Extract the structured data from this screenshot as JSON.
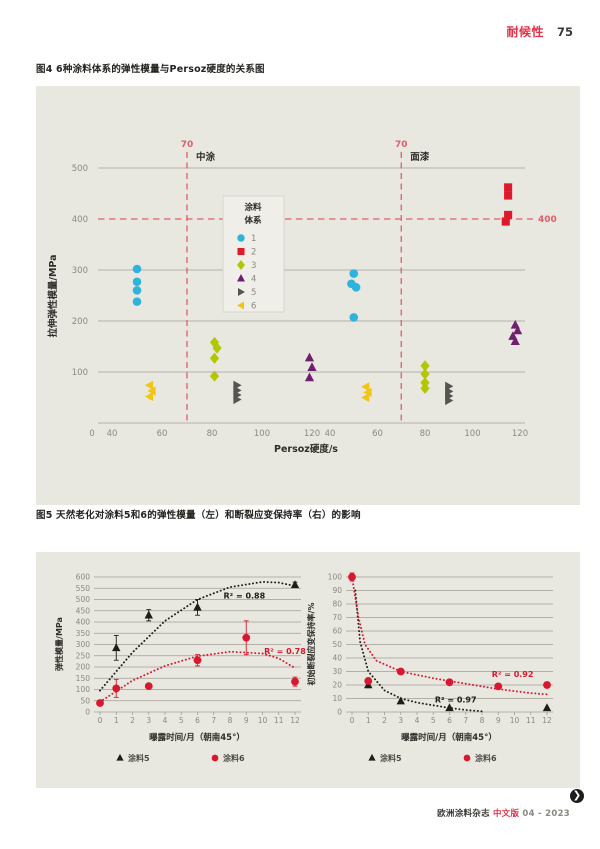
{
  "header": {
    "section_label": "耐候性",
    "page_number": "75"
  },
  "figure4": {
    "caption": "图4 6种涂料体系的弹性模量与Persoz硬度的关系图"
  },
  "figure5": {
    "caption": "图5 天然老化对涂料5和6的弹性模量（左）和断裂应变保持率（右）的影响"
  },
  "footer": {
    "journal": "欧洲涂料杂志",
    "edition": "中文版",
    "issue": "04 - 2023",
    "next_icon": "circle-arrow-right-icon",
    "next_glyph": "❯"
  },
  "colors": {
    "accent_red": "#e4314a",
    "ref_line_red": "#e05f68",
    "panel_bg": "#e8e7e0",
    "grid": "#a29f94",
    "tick_text": "#8b897f",
    "dark_text": "#2e2d29",
    "legend_bg": "#efeee8",
    "legend_border": "#d9d7cd",
    "series1_cyan": "#2eb3dc",
    "series2_red": "#dc1a2c",
    "series3_green": "#b2c704",
    "series4_purple": "#701f6f",
    "series5_gray": "#565551",
    "series6_yellow": "#f2c513",
    "coating5_black": "#1d1d1b",
    "coating6_red": "#d8182f"
  },
  "chart_data": [
    {
      "id": "fig4",
      "type": "scatter",
      "title": "图4 6种涂料体系的弹性模量与Persoz硬度的关系图",
      "xlabel": "Persoz硬度/s",
      "ylabel": "拉伸弹性模量/MPa",
      "ylim": [
        0,
        500
      ],
      "yticks": [
        0,
        100,
        200,
        300,
        400,
        500
      ],
      "ref_y": {
        "value": 400,
        "label": "400"
      },
      "panels": [
        {
          "name": "中涂",
          "xticks": [
            0,
            40,
            60,
            80,
            100,
            120
          ],
          "ref_x": {
            "value": 70,
            "label": "70"
          }
        },
        {
          "name": "面漆",
          "xticks": [
            40,
            60,
            80,
            100,
            120
          ],
          "ref_x": {
            "value": 70,
            "label": "70"
          }
        }
      ],
      "legend": {
        "title_lines": [
          "涂料",
          "体系"
        ]
      },
      "grid": true,
      "series": [
        {
          "name": "1",
          "marker": "circle",
          "color": "#2eb3dc",
          "points": [
            [
              0,
              50,
              302
            ],
            [
              0,
              50,
              277
            ],
            [
              0,
              50,
              260
            ],
            [
              0,
              50,
              238
            ],
            [
              1,
              50,
              293
            ],
            [
              1,
              49,
              273
            ],
            [
              1,
              51,
              266
            ],
            [
              1,
              50,
              207
            ]
          ]
        },
        {
          "name": "2",
          "marker": "square",
          "color": "#dc1a2c",
          "points": [
            [
              1,
              115,
              462
            ],
            [
              1,
              115,
              446
            ],
            [
              1,
              115,
              408
            ],
            [
              1,
              114,
              395
            ]
          ]
        },
        {
          "name": "3",
          "marker": "diamond",
          "color": "#b2c704",
          "points": [
            [
              0,
              81,
              158
            ],
            [
              0,
              82,
              147
            ],
            [
              0,
              81,
              127
            ],
            [
              0,
              81,
              92
            ],
            [
              1,
              80,
              112
            ],
            [
              1,
              80,
              96
            ],
            [
              1,
              80,
              79
            ],
            [
              1,
              80,
              68
            ]
          ]
        },
        {
          "name": "4",
          "marker": "triangle-up",
          "color": "#701f6f",
          "points": [
            [
              0,
              119,
              128
            ],
            [
              0,
              120,
              109
            ],
            [
              0,
              119,
              89
            ],
            [
              1,
              118,
              192
            ],
            [
              1,
              119,
              181
            ],
            [
              1,
              117,
              170
            ],
            [
              1,
              118,
              160
            ]
          ]
        },
        {
          "name": "5",
          "marker": "triangle-right",
          "color": "#565551",
          "points": [
            [
              0,
              90,
              74
            ],
            [
              0,
              90,
              64
            ],
            [
              0,
              90,
              55
            ],
            [
              0,
              90,
              46
            ],
            [
              1,
              90,
              72
            ],
            [
              1,
              90,
              62
            ],
            [
              1,
              90,
              53
            ],
            [
              1,
              90,
              44
            ]
          ]
        },
        {
          "name": "6",
          "marker": "triangle-left",
          "color": "#f2c513",
          "points": [
            [
              0,
              55,
              74
            ],
            [
              0,
              56,
              63
            ],
            [
              0,
              55,
              52
            ],
            [
              1,
              55,
              71
            ],
            [
              1,
              56,
              60
            ],
            [
              1,
              55,
              50
            ]
          ]
        }
      ]
    },
    {
      "id": "fig5-left",
      "type": "scatter",
      "xlabel": "曝露时间/月（朝南45°）",
      "ylabel": "弹性模量/MPa",
      "xlim": [
        0,
        12
      ],
      "xticks": [
        0,
        1,
        2,
        3,
        4,
        5,
        6,
        7,
        8,
        9,
        10,
        11,
        12
      ],
      "ylim": [
        0,
        600
      ],
      "yticks": [
        0,
        50,
        100,
        150,
        200,
        250,
        300,
        350,
        400,
        450,
        500,
        550,
        600
      ],
      "grid": true,
      "series": [
        {
          "name": "涂料5",
          "marker": "triangle-up",
          "color": "#1d1d1b",
          "points": [
            [
              1,
              285,
              55
            ],
            [
              3,
              430,
              25
            ],
            [
              6,
              465,
              35
            ],
            [
              12,
              565,
              12
            ]
          ],
          "r2_label": "R² = 0.88",
          "r2_xy": [
            7.6,
            505
          ],
          "trend": [
            [
              0,
              95
            ],
            [
              2,
              265
            ],
            [
              4,
              405
            ],
            [
              6,
              500
            ],
            [
              8,
              555
            ],
            [
              10,
              578
            ],
            [
              11,
              575
            ],
            [
              12,
              560
            ]
          ]
        },
        {
          "name": "涂料6",
          "marker": "circle",
          "color": "#d8182f",
          "points": [
            [
              0,
              40,
              10
            ],
            [
              1,
              105,
              40
            ],
            [
              3,
              115,
              8
            ],
            [
              6,
              230,
              25
            ],
            [
              9,
              330,
              75
            ],
            [
              12,
              135,
              20
            ]
          ],
          "r2_label": "R² = 0.78",
          "r2_xy": [
            10.1,
            258
          ],
          "trend": [
            [
              0,
              45
            ],
            [
              2,
              140
            ],
            [
              4,
              205
            ],
            [
              6,
              248
            ],
            [
              8,
              268
            ],
            [
              10,
              260
            ],
            [
              11,
              238
            ],
            [
              12,
              195
            ]
          ]
        }
      ],
      "legend_items": [
        {
          "marker": "triangle-up",
          "color": "#1d1d1b",
          "label": "涂料5"
        },
        {
          "marker": "circle",
          "color": "#d8182f",
          "label": "涂料6"
        }
      ]
    },
    {
      "id": "fig5-right",
      "type": "scatter",
      "xlabel": "曝露时间/月（朝南45°）",
      "ylabel": "初始断裂应变保持率/%",
      "xlim": [
        0,
        12
      ],
      "xticks": [
        0,
        1,
        2,
        3,
        4,
        5,
        6,
        7,
        8,
        9,
        10,
        11,
        12
      ],
      "ylim": [
        0,
        100
      ],
      "yticks": [
        0,
        10,
        20,
        30,
        40,
        50,
        60,
        70,
        80,
        90,
        100
      ],
      "grid": true,
      "series": [
        {
          "name": "涂料5",
          "marker": "triangle-up",
          "color": "#1d1d1b",
          "points": [
            [
              1,
              20,
              2
            ],
            [
              3,
              8,
              0
            ],
            [
              6,
              3,
              0
            ],
            [
              12,
              3,
              0
            ]
          ],
          "r2_label": "R² = 0.97",
          "r2_xy": [
            5.1,
            7
          ],
          "trend": [
            [
              0.2,
              90
            ],
            [
              0.5,
              52
            ],
            [
              1,
              30
            ],
            [
              2,
              16
            ],
            [
              3,
              10
            ],
            [
              4,
              7
            ],
            [
              5,
              5
            ],
            [
              6,
              3
            ],
            [
              7,
              1.5
            ],
            [
              8,
              0.5
            ]
          ]
        },
        {
          "name": "涂料6",
          "marker": "circle",
          "color": "#d8182f",
          "points": [
            [
              0,
              100,
              3
            ],
            [
              1,
              23,
              2
            ],
            [
              3,
              30,
              2
            ],
            [
              6,
              22,
              2
            ],
            [
              9,
              19,
              2
            ],
            [
              12,
              20,
              2
            ]
          ],
          "r2_label": "R² = 0.92",
          "r2_xy": [
            8.6,
            26
          ],
          "trend": [
            [
              0,
              100
            ],
            [
              0.4,
              70
            ],
            [
              0.8,
              50
            ],
            [
              1.5,
              38
            ],
            [
              3,
              30
            ],
            [
              5,
              25
            ],
            [
              7,
              21
            ],
            [
              9,
              17
            ],
            [
              11,
              14
            ],
            [
              12,
              13
            ]
          ]
        }
      ],
      "legend_items": [
        {
          "marker": "triangle-up",
          "color": "#1d1d1b",
          "label": "涂料5"
        },
        {
          "marker": "circle",
          "color": "#d8182f",
          "label": "涂料6"
        }
      ]
    }
  ]
}
